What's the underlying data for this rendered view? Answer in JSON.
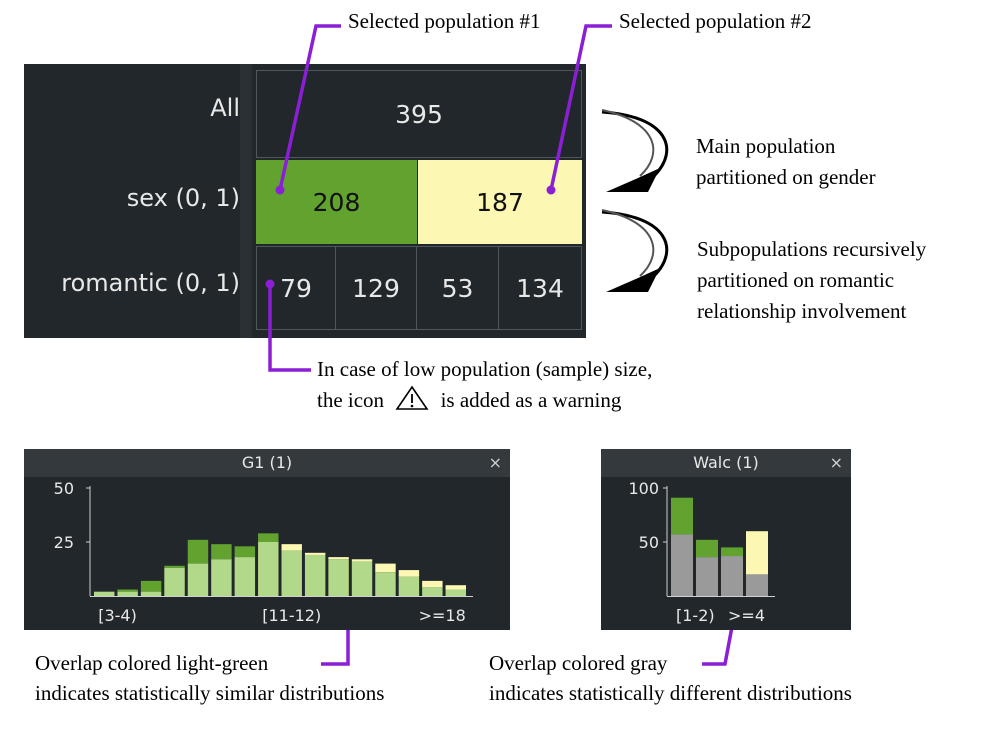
{
  "callouts": {
    "selected1": "Selected population #1",
    "selected2": "Selected population #2",
    "main_partition": [
      "Main population",
      "partitioned on gender"
    ],
    "sub_partition": [
      "Subpopulations recursively",
      "partitioned on romantic",
      "relationship involvement"
    ],
    "low_pop": [
      "In case of low population (sample) size,",
      "the icon",
      "is added as a warning"
    ],
    "similar": [
      "Overlap colored light-green",
      "indicates statistically similar distributions"
    ],
    "different": [
      "Overlap colored gray",
      "indicates statistically different distributions"
    ]
  },
  "tree": {
    "rows": [
      "All",
      "sex (0, 1)",
      "romantic (0, 1)"
    ],
    "all": "395",
    "sex": [
      "208",
      "187"
    ],
    "romantic": [
      "79",
      "129",
      "53",
      "134"
    ]
  },
  "colors": {
    "accent": "#8a1fd6",
    "sel1": "#62a330",
    "sel2": "#fdf7b4",
    "similar": "#b2d989",
    "different": "#9a9a9a",
    "panel": "#21272a"
  },
  "chart_data": [
    {
      "type": "bar",
      "title": "G1 (1)",
      "close": "×",
      "ylim": [
        0,
        50
      ],
      "yticks": [
        "50",
        "25"
      ],
      "xticks": [
        "[3-4)",
        "[11-12)",
        ">=18"
      ],
      "series": [
        {
          "values": [
            2,
            3,
            7,
            14,
            26,
            24,
            23,
            29,
            21,
            19,
            17,
            16,
            11,
            9,
            4,
            3
          ]
        },
        {
          "values": [
            2,
            2,
            2,
            13,
            15,
            17,
            18,
            25,
            24,
            20,
            18,
            17,
            15,
            12,
            7,
            5
          ]
        }
      ],
      "overlap": [
        2,
        2,
        2,
        13,
        15,
        17,
        18,
        25,
        21,
        19,
        17,
        16,
        11,
        9,
        4,
        3
      ],
      "overlap_color": "#b2d989"
    },
    {
      "type": "bar",
      "title": "Walc (1)",
      "close": "×",
      "ylim": [
        0,
        100
      ],
      "yticks": [
        "100",
        "50"
      ],
      "xticks": [
        "[1-2)",
        ">=4"
      ],
      "series": [
        {
          "values": [
            91,
            52,
            45,
            20
          ]
        },
        {
          "values": [
            57,
            36,
            37,
            60
          ]
        }
      ],
      "overlap": [
        57,
        36,
        37,
        20
      ],
      "overlap_color": "#9a9a9a"
    }
  ]
}
